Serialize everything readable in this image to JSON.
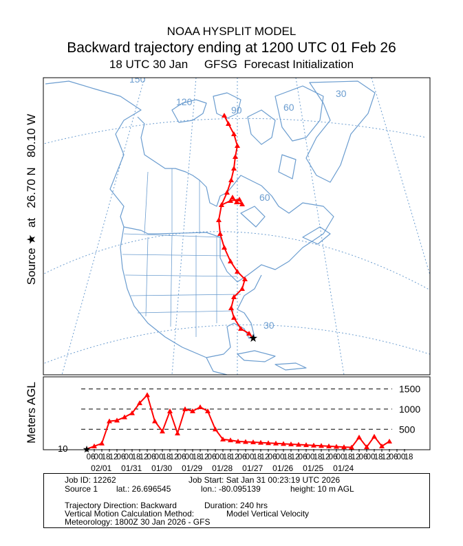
{
  "header": {
    "model": "NOAA HYSPLIT MODEL",
    "title": "Backward trajectory ending at 1200 UTC 01 Feb 26",
    "init": "18 UTC 30 Jan     GFSG  Forecast Initialization"
  },
  "side_label": "Source ★  at   26.70 N   80.10 W",
  "map": {
    "land_color": "#6a9ccf",
    "trajectory_color": "#ff0000",
    "longitude_labels": [
      "150",
      "120",
      "90",
      "60",
      "30"
    ],
    "latitude_labels": [
      "60",
      "30"
    ]
  },
  "chart_data": {
    "type": "line",
    "ylabel": "Meters AGL",
    "y_reference_lines": [
      500,
      1000,
      1500
    ],
    "y_reference_labels": [
      "500",
      "1000",
      "1500"
    ],
    "ylim": [
      10,
      1800
    ],
    "start_height_label": "10",
    "hour_tick_labels": [
      "06",
      "00",
      "18",
      "12",
      "06",
      "00",
      "18",
      "12",
      "06",
      "00",
      "18",
      "12",
      "06",
      "00",
      "18",
      "12",
      "06",
      "00",
      "18",
      "12",
      "06",
      "00",
      "18",
      "12",
      "06",
      "00",
      "18",
      "12",
      "06",
      "00",
      "18",
      "12",
      "06",
      "00",
      "18",
      "12",
      "06",
      "00",
      "18",
      "12",
      "06",
      "00",
      "18"
    ],
    "date_labels": [
      "02/01",
      "01/31",
      "01/30",
      "01/29",
      "01/28",
      "01/27",
      "01/26",
      "01/25",
      "01/24"
    ],
    "series": [
      {
        "x_hours_back": [
          0,
          6,
          12,
          18,
          24,
          30,
          36,
          42,
          48,
          54,
          60,
          66,
          72,
          78,
          84,
          90,
          96,
          102,
          108,
          114,
          120,
          126,
          132,
          138,
          144,
          150,
          156,
          162,
          168,
          174,
          180,
          186,
          192,
          198,
          204,
          210,
          216,
          222,
          228,
          234,
          240
        ],
        "values": [
          10,
          80,
          150,
          700,
          720,
          800,
          900,
          1150,
          1350,
          700,
          450,
          950,
          400,
          1000,
          950,
          1050,
          950,
          500,
          250,
          230,
          200,
          190,
          180,
          170,
          160,
          150,
          140,
          130,
          120,
          110,
          100,
          90,
          80,
          70,
          60,
          50,
          300,
          60,
          320,
          80,
          200
        ]
      }
    ]
  },
  "info": {
    "job_id": "Job ID: 12262",
    "job_start": "Job Start: Sat Jan 31 00:23:19 UTC 2026",
    "source": "Source 1",
    "lat": "lat.: 26.696545",
    "lon": "lon.: -80.095139",
    "height": "height: 10 m AGL",
    "direction": "Trajectory Direction: Backward",
    "duration": "Duration: 240 hrs",
    "vmethod": "Vertical Motion Calculation Method:",
    "vmethod_value": "Model Vertical Velocity",
    "meteorology": "Meteorology: 1800Z 30 Jan 2026 - GFS"
  }
}
